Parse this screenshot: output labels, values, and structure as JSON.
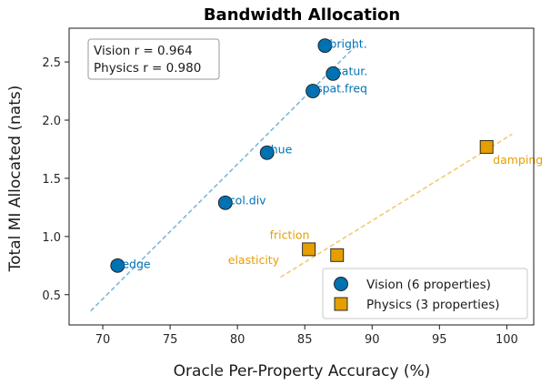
{
  "chart_data": {
    "type": "scatter",
    "title": "Bandwidth Allocation",
    "xlabel": "Oracle Per-Property Accuracy (%)",
    "ylabel": "Total MI Allocated (nats)",
    "xlim": [
      67.5,
      102.0
    ],
    "ylim": [
      0.24,
      2.79
    ],
    "xticks": [
      70,
      75,
      80,
      85,
      90,
      95,
      100
    ],
    "yticks": [
      0.5,
      1.0,
      1.5,
      2.0,
      2.5
    ],
    "xtick_labels": [
      "70",
      "75",
      "80",
      "85",
      "90",
      "95",
      "100"
    ],
    "ytick_labels": [
      "0.5",
      "1.0",
      "1.5",
      "2.0",
      "2.5"
    ],
    "grid": false,
    "legend_position": "lower-right",
    "series": [
      {
        "name": "Vision (6 properties)",
        "marker": "circle",
        "color": "#0072b2",
        "points": [
          {
            "x": 71.1,
            "y": 0.75,
            "label": "edge"
          },
          {
            "x": 79.1,
            "y": 1.29,
            "label": "col.div"
          },
          {
            "x": 82.2,
            "y": 1.72,
            "label": "hue"
          },
          {
            "x": 85.6,
            "y": 2.25,
            "label": "spat.freq"
          },
          {
            "x": 86.5,
            "y": 2.64,
            "label": "bright."
          },
          {
            "x": 87.1,
            "y": 2.4,
            "label": "satur."
          }
        ],
        "trend": {
          "x": [
            69.1,
            88.8
          ],
          "y": [
            0.36,
            2.64
          ]
        }
      },
      {
        "name": "Physics (3 properties)",
        "marker": "square",
        "color": "#e69f00",
        "points": [
          {
            "x": 85.3,
            "y": 0.89,
            "label": "friction"
          },
          {
            "x": 87.4,
            "y": 0.84,
            "label": "elasticity"
          },
          {
            "x": 98.5,
            "y": 1.77,
            "label": "damping"
          }
        ],
        "trend": {
          "x": [
            83.2,
            100.4
          ],
          "y": [
            0.65,
            1.88
          ]
        }
      }
    ],
    "annotation": {
      "lines": [
        "Vision r = 0.964",
        "Physics r = 0.980"
      ],
      "position": "top-left"
    }
  }
}
